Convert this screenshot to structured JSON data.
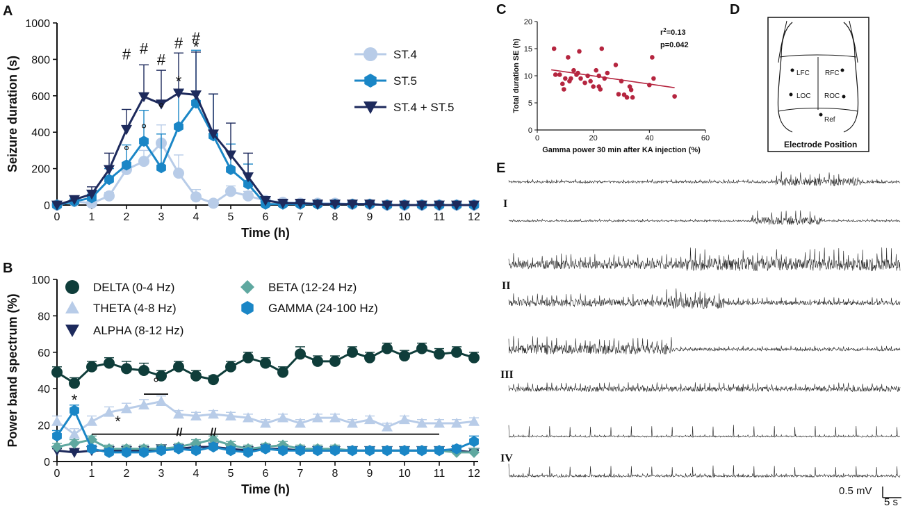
{
  "panels": {
    "A": "A",
    "B": "B",
    "C": "C",
    "D": "D",
    "E": "E"
  },
  "chart_data": [
    {
      "id": "A",
      "type": "line",
      "xlabel": "Time (h)",
      "ylabel": "Seizure duration (s)",
      "xlim": [
        0,
        12
      ],
      "ylim": [
        0,
        1000
      ],
      "xticks": [
        "0",
        "1",
        "2",
        "3",
        "4",
        "5",
        "6",
        "7",
        "8",
        "9",
        "10",
        "11",
        "12"
      ],
      "yticks": [
        "0",
        "200",
        "400",
        "600",
        "800",
        "1000"
      ],
      "x": [
        0,
        0.5,
        1,
        1.5,
        2,
        2.5,
        3,
        3.5,
        4,
        4.5,
        5,
        5.5,
        6,
        6.5,
        7,
        7.5,
        8,
        8.5,
        9,
        9.5,
        10,
        10.5,
        11,
        11.5,
        12
      ],
      "legend_position": "top-right",
      "series": [
        {
          "name": "ST.4",
          "color": "#b8cce8",
          "marker": "circle",
          "values": [
            0,
            20,
            10,
            50,
            195,
            240,
            340,
            175,
            45,
            10,
            75,
            50,
            25,
            15,
            10,
            10,
            10,
            5,
            5,
            0,
            0,
            0,
            0,
            0,
            0
          ],
          "errors": [
            0,
            5,
            5,
            20,
            40,
            60,
            100,
            100,
            40,
            10,
            30,
            25,
            15,
            5,
            5,
            5,
            5,
            5,
            0,
            0,
            0,
            0,
            0,
            0,
            0
          ]
        },
        {
          "name": "ST.5",
          "color": "#1a86c6",
          "marker": "hexagon",
          "values": [
            0,
            20,
            40,
            140,
            220,
            350,
            205,
            430,
            560,
            380,
            195,
            115,
            5,
            5,
            5,
            5,
            5,
            5,
            5,
            0,
            0,
            0,
            0,
            0,
            0
          ],
          "errors": [
            0,
            10,
            20,
            60,
            110,
            170,
            185,
            200,
            290,
            230,
            140,
            110,
            15,
            5,
            5,
            5,
            5,
            5,
            5,
            0,
            0,
            0,
            0,
            0,
            0
          ]
        },
        {
          "name": "ST.4 + ST.5",
          "color": "#1d2a5c",
          "marker": "triangle-down",
          "values": [
            0,
            30,
            60,
            195,
            415,
            595,
            555,
            615,
            605,
            390,
            275,
            155,
            25,
            10,
            10,
            5,
            5,
            5,
            5,
            0,
            0,
            0,
            0,
            0,
            0
          ],
          "errors": [
            0,
            20,
            40,
            90,
            110,
            175,
            185,
            220,
            235,
            220,
            175,
            130,
            20,
            5,
            5,
            5,
            5,
            5,
            5,
            0,
            0,
            0,
            0,
            0,
            0
          ]
        }
      ],
      "annotations": [
        {
          "x": 2,
          "y": 800,
          "text": "#"
        },
        {
          "x": 2.5,
          "y": 830,
          "text": "#"
        },
        {
          "x": 3,
          "y": 770,
          "text": "#"
        },
        {
          "x": 3.5,
          "y": 860,
          "text": "#"
        },
        {
          "x": 4,
          "y": 890,
          "text": "#"
        },
        {
          "x": 4,
          "y": 840,
          "text": "*"
        },
        {
          "x": 3.5,
          "y": 650,
          "text": "*"
        },
        {
          "x": 2,
          "y": 265,
          "text": "°"
        },
        {
          "x": 2.5,
          "y": 385,
          "text": "°"
        },
        {
          "x": 3,
          "y": 500,
          "text": "°"
        }
      ]
    },
    {
      "id": "B",
      "type": "line",
      "xlabel": "Time (h)",
      "ylabel": "Power band spectrum (%)",
      "xlim": [
        0,
        12
      ],
      "ylim": [
        0,
        100
      ],
      "xticks": [
        "0",
        "1",
        "2",
        "3",
        "4",
        "5",
        "6",
        "7",
        "8",
        "9",
        "10",
        "11",
        "12"
      ],
      "yticks": [
        "0",
        "20",
        "40",
        "60",
        "80",
        "100"
      ],
      "x": [
        0,
        0.5,
        1,
        1.5,
        2,
        2.5,
        3,
        3.5,
        4,
        4.5,
        5,
        5.5,
        6,
        6.5,
        7,
        7.5,
        8,
        8.5,
        9,
        9.5,
        10,
        10.5,
        11,
        11.5,
        12
      ],
      "legend_position": "top",
      "series": [
        {
          "name": "DELTA (0-4 Hz)",
          "color": "#0f3d3a",
          "marker": "circle",
          "values": [
            49,
            43,
            52,
            54,
            51,
            50,
            47,
            52,
            47,
            45,
            52,
            57,
            54,
            49,
            59,
            55,
            55,
            60,
            57,
            62,
            58,
            62,
            59,
            60,
            57
          ],
          "errors": [
            3,
            3,
            3,
            3,
            4,
            4,
            3,
            3,
            3,
            2,
            3,
            3,
            3,
            3,
            4,
            3,
            3,
            3,
            3,
            3,
            3,
            3,
            3,
            3,
            3
          ]
        },
        {
          "name": "THETA (4-8 Hz)",
          "color": "#b8cce8",
          "marker": "triangle-up",
          "values": [
            22,
            15,
            22,
            27,
            29,
            31,
            33,
            26,
            25,
            26,
            25,
            24,
            21,
            24,
            21,
            24,
            24,
            21,
            23,
            19,
            23,
            21,
            21,
            21,
            22
          ],
          "errors": [
            3,
            3,
            3,
            3,
            3,
            3,
            3,
            2,
            2,
            2,
            2,
            2,
            2,
            2,
            2,
            2,
            2,
            2,
            2,
            2,
            2,
            2,
            2,
            2,
            2
          ]
        },
        {
          "name": "ALPHA (8-12 Hz)",
          "color": "#1d2a5c",
          "marker": "triangle-down",
          "values": [
            6,
            5,
            6,
            6,
            6,
            6,
            7,
            7,
            8,
            8,
            7,
            6,
            7,
            7,
            6,
            6,
            6,
            6,
            6,
            6,
            6,
            6,
            6,
            6,
            5
          ],
          "errors": [
            1,
            1,
            1,
            1,
            1,
            1,
            1,
            1,
            1,
            1,
            1,
            1,
            1,
            1,
            1,
            1,
            1,
            1,
            1,
            1,
            1,
            1,
            1,
            1,
            1
          ]
        },
        {
          "name": "BETA (12-24 Hz)",
          "color": "#5fa8a0",
          "marker": "diamond",
          "values": [
            8,
            10,
            12,
            7,
            7,
            7,
            7,
            8,
            10,
            12,
            9,
            7,
            8,
            9,
            7,
            7,
            7,
            6,
            6,
            6,
            6,
            6,
            6,
            5,
            5
          ],
          "errors": [
            2,
            2,
            2,
            2,
            2,
            2,
            2,
            2,
            2,
            2,
            2,
            2,
            2,
            2,
            2,
            2,
            2,
            2,
            2,
            2,
            2,
            2,
            2,
            2,
            2
          ]
        },
        {
          "name": "GAMMA (24-100 Hz)",
          "color": "#1a86c6",
          "marker": "hexagon",
          "values": [
            14,
            28,
            7,
            5,
            5,
            5,
            6,
            7,
            6,
            8,
            6,
            5,
            7,
            6,
            6,
            6,
            6,
            6,
            6,
            6,
            6,
            6,
            6,
            7,
            11
          ],
          "errors": [
            3,
            3,
            2,
            2,
            2,
            2,
            2,
            2,
            2,
            2,
            2,
            2,
            2,
            2,
            2,
            2,
            2,
            2,
            2,
            2,
            2,
            2,
            2,
            2,
            3
          ]
        }
      ],
      "annotations": [
        {
          "x": 0.5,
          "y": 31,
          "text": "*"
        },
        {
          "x": 1.75,
          "y": 19,
          "text": "*"
        },
        {
          "x": 2.85,
          "y": 40,
          "text": "°"
        }
      ],
      "sig_bars": [
        {
          "x1": 1,
          "x2": 11,
          "y": 15
        },
        {
          "x1": 2.5,
          "x2": 3.2,
          "y": 37
        }
      ],
      "axis_breaks": [
        "//",
        "//"
      ]
    },
    {
      "id": "C",
      "type": "scatter",
      "xlabel": "Gamma power 30 min after KA injection (%)",
      "ylabel": "Total duration SE (h)",
      "xlim": [
        0,
        60
      ],
      "ylim": [
        0,
        20
      ],
      "xticks": [
        "0",
        "20",
        "40",
        "60"
      ],
      "yticks": [
        "0",
        "5",
        "10",
        "15",
        "20"
      ],
      "color": "#b5253f",
      "points": [
        [
          6,
          15
        ],
        [
          6.5,
          10.2
        ],
        [
          8,
          10.2
        ],
        [
          9,
          8.5
        ],
        [
          9.5,
          7.5
        ],
        [
          10,
          9.5
        ],
        [
          11,
          13.4
        ],
        [
          11.5,
          9
        ],
        [
          12,
          9.5
        ],
        [
          13,
          11
        ],
        [
          14,
          10.2
        ],
        [
          14.5,
          10.5
        ],
        [
          15,
          14.5
        ],
        [
          15.5,
          9.5
        ],
        [
          17,
          8.7
        ],
        [
          18,
          10
        ],
        [
          19,
          9
        ],
        [
          20,
          8
        ],
        [
          21,
          11
        ],
        [
          22,
          10
        ],
        [
          22,
          8
        ],
        [
          22.5,
          7.5
        ],
        [
          23,
          15
        ],
        [
          24,
          9.5
        ],
        [
          25,
          10.5
        ],
        [
          28,
          12
        ],
        [
          29,
          6.6
        ],
        [
          30,
          9
        ],
        [
          31,
          6.5
        ],
        [
          32,
          6
        ],
        [
          33,
          8
        ],
        [
          33.5,
          7.4
        ],
        [
          34,
          6
        ],
        [
          40,
          8.3
        ],
        [
          41,
          13.4
        ],
        [
          41.5,
          9.5
        ],
        [
          49,
          6.2
        ]
      ],
      "regression": {
        "x1": 5,
        "y1": 11.1,
        "x2": 49,
        "y2": 7.8
      },
      "stats": {
        "r2_label": "r",
        "r2_sup": "2",
        "r2_value": "=0.13",
        "p": "p=0.042"
      }
    }
  ],
  "electrodes": {
    "title": "Electrode Position",
    "labels": [
      "LFC",
      "RFC",
      "LOC",
      "ROC",
      "Ref"
    ]
  },
  "traces": {
    "groups": [
      "I",
      "II",
      "III",
      "IV"
    ],
    "scale_mv": "0.5 mV",
    "scale_s": "5 s"
  }
}
